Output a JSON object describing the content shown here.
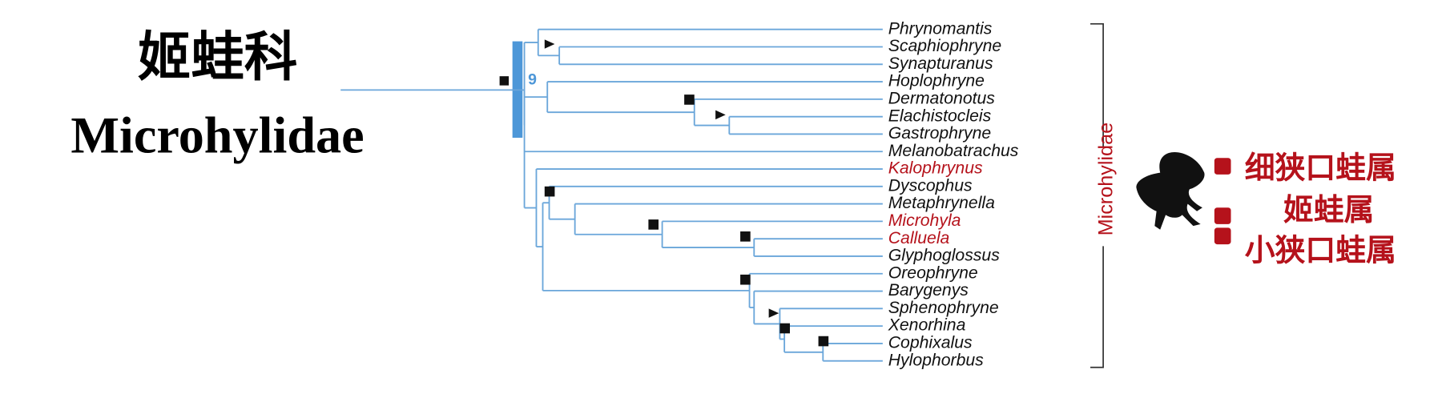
{
  "header": {
    "title_cn": "姬蛙科",
    "title_en": "Microhylidae"
  },
  "tree": {
    "node_label": "9",
    "taxa": [
      {
        "name": "Phrynomantis",
        "color": "#111111"
      },
      {
        "name": "Scaphiophryne",
        "color": "#111111"
      },
      {
        "name": "Synapturanus",
        "color": "#111111"
      },
      {
        "name": "Hoplophryne",
        "color": "#111111"
      },
      {
        "name": "Dermatonotus",
        "color": "#111111"
      },
      {
        "name": "Elachistocleis",
        "color": "#111111"
      },
      {
        "name": "Gastrophryne",
        "color": "#111111"
      },
      {
        "name": "Melanobatrachus",
        "color": "#111111"
      },
      {
        "name": "Kalophrynus",
        "color": "#b5121b"
      },
      {
        "name": "Dyscophus",
        "color": "#111111"
      },
      {
        "name": "Metaphrynella",
        "color": "#111111"
      },
      {
        "name": "Microhyla",
        "color": "#b5121b"
      },
      {
        "name": "Calluela",
        "color": "#b5121b"
      },
      {
        "name": "Glyphoglossus",
        "color": "#111111"
      },
      {
        "name": "Oreophryne",
        "color": "#111111"
      },
      {
        "name": "Barygenys",
        "color": "#111111"
      },
      {
        "name": "Sphenophryne",
        "color": "#111111"
      },
      {
        "name": "Xenorhina",
        "color": "#111111"
      },
      {
        "name": "Cophixalus",
        "color": "#111111"
      },
      {
        "name": "Hylophorbus",
        "color": "#111111"
      }
    ],
    "bracket_label": "Microhylidae"
  },
  "genera": [
    "细狭口蛙属",
    "姬蛙属",
    "小狭口蛙属"
  ]
}
